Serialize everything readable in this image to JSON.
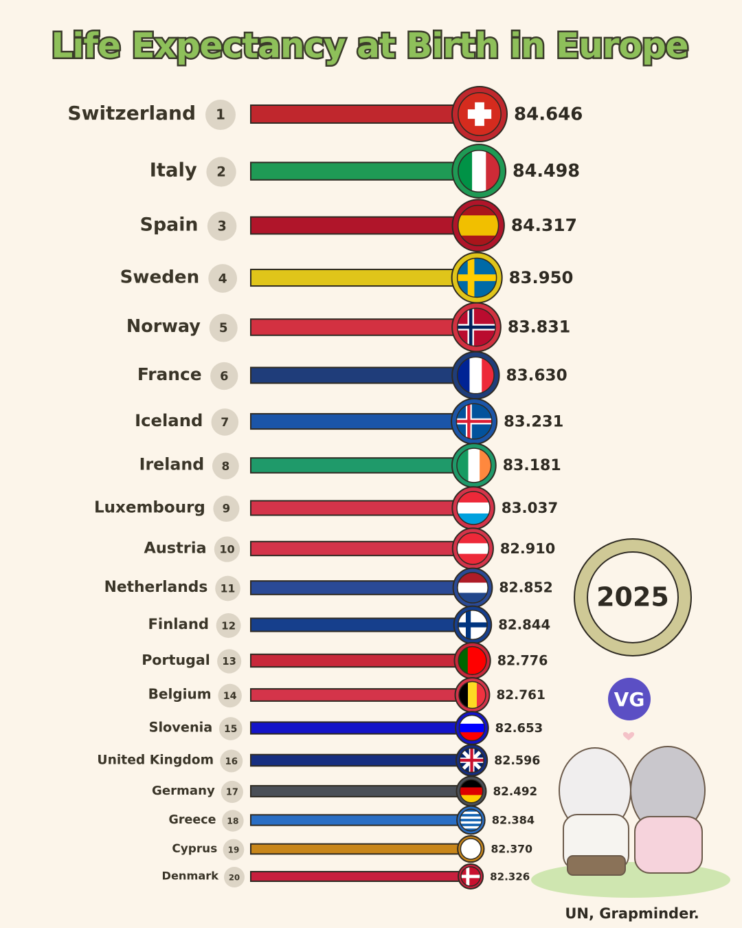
{
  "chart_data": {
    "type": "bar",
    "title": "Life Expectancy at Birth in Europe",
    "categories": [
      "Switzerland",
      "Italy",
      "Spain",
      "Sweden",
      "Norway",
      "France",
      "Iceland",
      "Ireland",
      "Luxembourg",
      "Austria",
      "Netherlands",
      "Finland",
      "Portugal",
      "Belgium",
      "Slovenia",
      "United Kingdom",
      "Germany",
      "Greece",
      "Cyprus",
      "Denmark"
    ],
    "ranks": [
      1,
      2,
      3,
      4,
      5,
      6,
      7,
      8,
      9,
      10,
      11,
      12,
      13,
      14,
      15,
      16,
      17,
      18,
      19,
      20
    ],
    "values": [
      84.646,
      84.498,
      84.317,
      83.95,
      83.831,
      83.63,
      83.231,
      83.181,
      83.037,
      82.91,
      82.852,
      82.844,
      82.776,
      82.761,
      82.653,
      82.596,
      82.492,
      82.384,
      82.37,
      82.326
    ],
    "value_labels": [
      "84.646",
      "84.498",
      "84.317",
      "83.950",
      "83.831",
      "83.630",
      "83.231",
      "83.181",
      "83.037",
      "82.910",
      "82.852",
      "82.844",
      "82.776",
      "82.761",
      "82.653",
      "82.596",
      "82.492",
      "82.384",
      "82.370",
      "82.326"
    ],
    "colors": [
      "#c0272d",
      "#1f9a55",
      "#b0152a",
      "#e0c51a",
      "#d33141",
      "#1f3d7a",
      "#1b55a8",
      "#1f9a6a",
      "#d4344a",
      "#d4344a",
      "#2a4a96",
      "#163f8c",
      "#c8283a",
      "#d4344a",
      "#1414c8",
      "#162e80",
      "#4a4f57",
      "#2a6ec4",
      "#c8861a",
      "#c8203e"
    ],
    "xlim": [
      25,
      85
    ],
    "year": "2025",
    "logo": "VG",
    "source": "UN, Grapminder."
  }
}
